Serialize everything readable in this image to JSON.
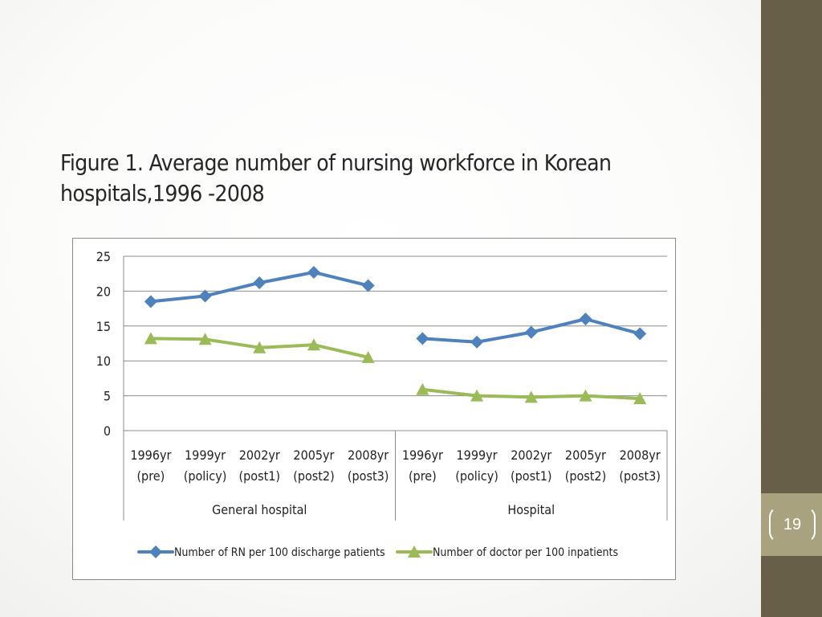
{
  "slide": {
    "title": "Figure 1. Average number of nursing workforce in Korean hospitals,1996 -2008",
    "page_number": "19"
  },
  "colors": {
    "rn_series": "#4f81bd",
    "doctor_series": "#9bbb59",
    "sidebar": "#675f48",
    "page_tab": "#a8a27f"
  },
  "chart_data": {
    "type": "line",
    "ylim": [
      0,
      25
    ],
    "yticks": [
      "0",
      "5",
      "10",
      "15",
      "20",
      "25"
    ],
    "grid": true,
    "legend_position": "bottom",
    "groups": [
      {
        "label": "General hospital",
        "categories": [
          [
            "1996yr",
            "(pre)"
          ],
          [
            "1999yr",
            "(policy)"
          ],
          [
            "2002yr",
            "(post1)"
          ],
          [
            "2005yr",
            "(post2)"
          ],
          [
            "2008yr",
            "(post3)"
          ]
        ]
      },
      {
        "label": "Hospital",
        "categories": [
          [
            "1996yr",
            "(pre)"
          ],
          [
            "1999yr",
            "(policy)"
          ],
          [
            "2002yr",
            "(post1)"
          ],
          [
            "2005yr",
            "(post2)"
          ],
          [
            "2008yr",
            "(post3)"
          ]
        ]
      }
    ],
    "series": [
      {
        "name": "Number of RN per 100 discharge patients",
        "marker": "diamond",
        "values": [
          [
            18.5,
            19.3,
            21.2,
            22.7,
            20.8
          ],
          [
            13.2,
            12.7,
            14.1,
            16.0,
            13.9
          ]
        ]
      },
      {
        "name": "Number of doctor per 100 inpatients",
        "marker": "triangle",
        "values": [
          [
            13.2,
            13.1,
            11.9,
            12.3,
            10.5
          ],
          [
            5.9,
            5.0,
            4.8,
            5.0,
            4.6
          ]
        ]
      }
    ]
  }
}
